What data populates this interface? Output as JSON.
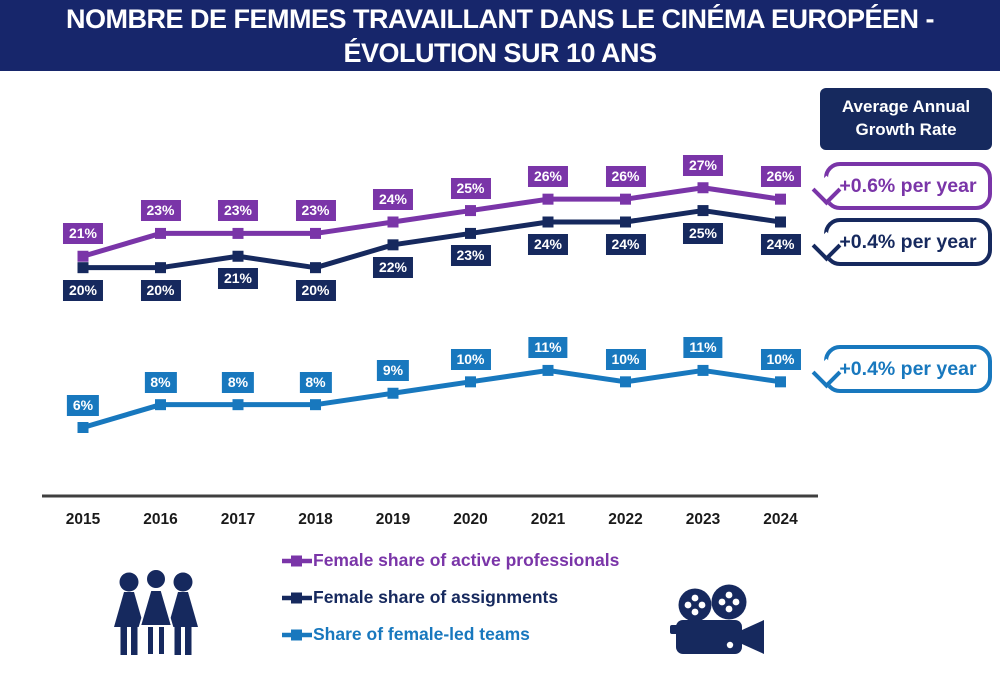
{
  "header": {
    "title_line1": "NOMBRE DE FEMMES TRAVAILLANT DANS LE CINÉMA EUROPÉEN -",
    "title_line2": "ÉVOLUTION SUR 10 ANS"
  },
  "growth_panel": {
    "title": "Average Annual Growth Rate",
    "callouts": [
      {
        "label": "+0.6% per year",
        "color": "#7A35A8"
      },
      {
        "label": "+0.4% per year",
        "color": "#16295E"
      },
      {
        "label": "+0.4% per year",
        "color": "#1878BE"
      }
    ]
  },
  "chart_data": {
    "type": "line",
    "x": [
      "2015",
      "2016",
      "2017",
      "2018",
      "2019",
      "2020",
      "2021",
      "2022",
      "2023",
      "2024"
    ],
    "series": [
      {
        "name": "Female share of active professionals",
        "color": "#7A35A8",
        "values": [
          21,
          23,
          23,
          23,
          24,
          25,
          26,
          26,
          27,
          26
        ],
        "label_position": "above"
      },
      {
        "name": "Female share of assignments",
        "color": "#16295E",
        "values": [
          20,
          20,
          21,
          20,
          22,
          23,
          24,
          24,
          25,
          24
        ],
        "label_position": "below"
      },
      {
        "name": "Share of female-led teams",
        "color": "#1878BE",
        "values": [
          6,
          8,
          8,
          8,
          9,
          10,
          11,
          10,
          11,
          10
        ],
        "label_position": "above"
      }
    ],
    "ylim": [
      0,
      36
    ],
    "value_suffix": "%",
    "grid": false,
    "legend_position": "bottom",
    "xlabel": "",
    "ylabel": ""
  },
  "icons": {
    "left_icon": "three-women",
    "right_icon": "movie-camera"
  },
  "colors": {
    "header_bg": "#17266B",
    "navy": "#16295E",
    "purple": "#7A35A8",
    "blue": "#1878BE",
    "axis": "#3F3F3F"
  }
}
